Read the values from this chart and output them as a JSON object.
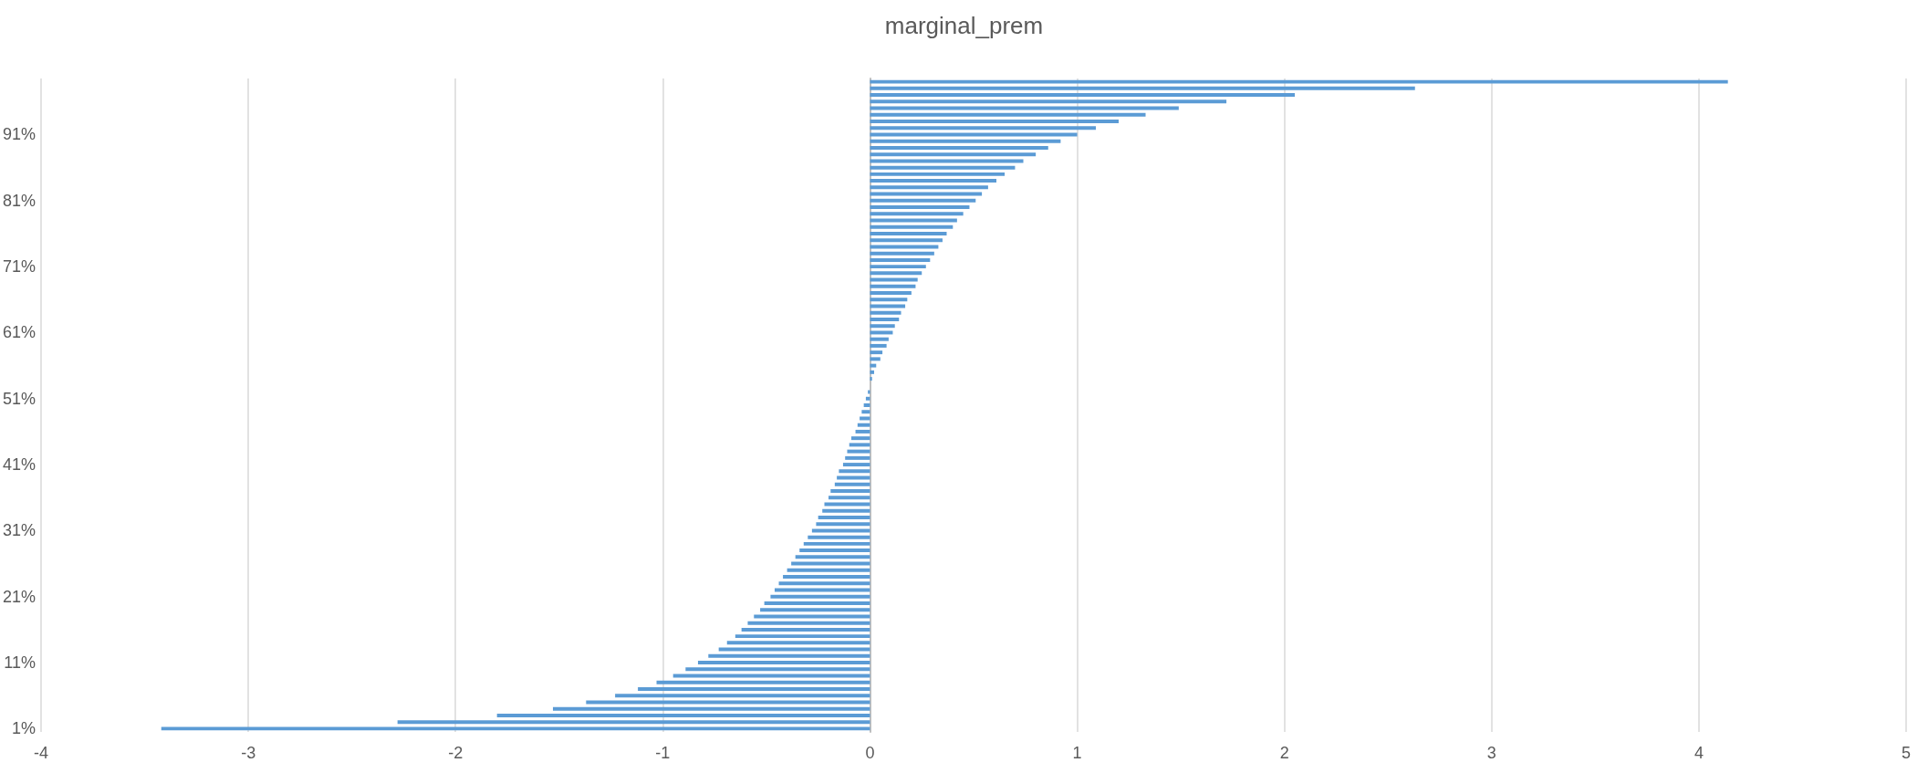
{
  "chart_data": {
    "type": "bar",
    "orientation": "horizontal",
    "title": "marginal_prem",
    "categories": [
      null,
      null,
      null,
      null,
      null,
      null,
      null,
      null,
      "91%",
      null,
      null,
      null,
      null,
      null,
      null,
      null,
      null,
      null,
      "81%",
      null,
      null,
      null,
      null,
      null,
      null,
      null,
      null,
      null,
      "71%",
      null,
      null,
      null,
      null,
      null,
      null,
      null,
      null,
      null,
      "61%",
      null,
      null,
      null,
      null,
      null,
      null,
      null,
      null,
      null,
      "51%",
      null,
      null,
      null,
      null,
      null,
      null,
      null,
      null,
      null,
      "41%",
      null,
      null,
      null,
      null,
      null,
      null,
      null,
      null,
      null,
      "31%",
      null,
      null,
      null,
      null,
      null,
      null,
      null,
      null,
      null,
      "21%",
      null,
      null,
      null,
      null,
      null,
      null,
      null,
      null,
      null,
      "11%",
      null,
      null,
      null,
      null,
      null,
      null,
      null,
      null,
      null,
      "1%"
    ],
    "values": [
      4.14,
      2.63,
      2.05,
      1.72,
      1.49,
      1.33,
      1.2,
      1.09,
      1.0,
      0.92,
      0.86,
      0.8,
      0.74,
      0.7,
      0.65,
      0.61,
      0.57,
      0.54,
      0.51,
      0.48,
      0.45,
      0.42,
      0.4,
      0.37,
      0.35,
      0.33,
      0.31,
      0.29,
      0.27,
      0.25,
      0.23,
      0.22,
      0.2,
      0.18,
      0.17,
      0.15,
      0.14,
      0.12,
      0.11,
      0.09,
      0.08,
      0.06,
      0.05,
      0.03,
      0.02,
      0.01,
      0.0,
      -0.01,
      -0.02,
      -0.03,
      -0.04,
      -0.05,
      -0.06,
      -0.07,
      -0.09,
      -0.1,
      -0.11,
      -0.12,
      -0.13,
      -0.15,
      -0.16,
      -0.17,
      -0.19,
      -0.2,
      -0.22,
      -0.23,
      -0.25,
      -0.26,
      -0.28,
      -0.3,
      -0.32,
      -0.34,
      -0.36,
      -0.38,
      -0.4,
      -0.42,
      -0.44,
      -0.46,
      -0.48,
      -0.51,
      -0.53,
      -0.56,
      -0.59,
      -0.62,
      -0.65,
      -0.69,
      -0.73,
      -0.78,
      -0.83,
      -0.89,
      -0.95,
      -1.03,
      -1.12,
      -1.23,
      -1.37,
      -1.53,
      -1.8,
      -2.28,
      -3.42
    ],
    "color": "#5b9bd5",
    "xlim": [
      -4,
      5
    ],
    "xticks": [
      -4,
      -3,
      -2,
      -1,
      0,
      1,
      2,
      3,
      4,
      5
    ],
    "grid": "x"
  }
}
